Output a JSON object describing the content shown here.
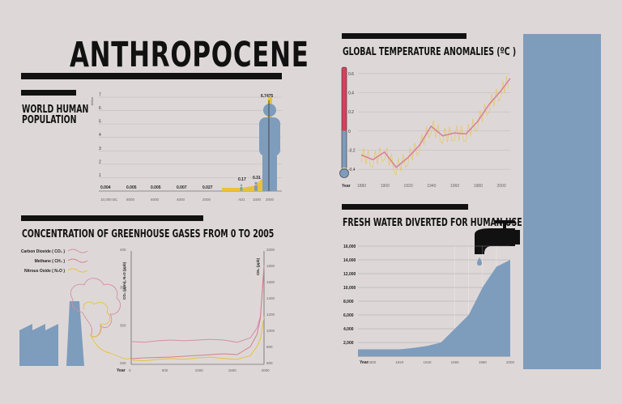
{
  "title": "ANTHROPOCENE",
  "population": {
    "title_line1": "WORLD HUMAN",
    "title_line2": "POPULATION",
    "unit": "billion",
    "yticks": [
      "1",
      "2",
      "3",
      "4",
      "5",
      "6",
      "7"
    ],
    "xlabels": [
      "10,000 BC",
      "8000",
      "6000",
      "4000",
      "2000",
      "AD1",
      "1000",
      "2000"
    ],
    "value_labels": [
      "0.004",
      "0.005",
      "0.005",
      "0.007",
      "0.027",
      "0.17",
      "0.31",
      "6.7475"
    ]
  },
  "temperature": {
    "title": "GLOBAL TEMPERATURE ANOMALIES (ºC )",
    "yticks": [
      "0.6",
      "0.4",
      "0.2",
      "0",
      "-0.2",
      "-0.4"
    ],
    "xlabels": [
      "1880",
      "1900",
      "1920",
      "1940",
      "1960",
      "1980",
      "2000"
    ],
    "year_label": "Year"
  },
  "ghg": {
    "title": "CONCENTRATION OF GREENHOUSE GASES FROM 0 TO 2005",
    "legend": [
      "Carbon Dioxide ( CO₂ )",
      "Methane ( CH₄ )",
      "Nitrous Oxide ( N₂O )"
    ],
    "left_axis_label": "CO₂ (ppm), N₂O (ppb)",
    "right_axis_label": "CH₄ (ppb)",
    "left_ticks": [
      "400",
      "350",
      "300",
      "250"
    ],
    "right_ticks": [
      "2000",
      "1800",
      "1600",
      "1400",
      "1200",
      "1000",
      "800",
      "600"
    ],
    "xlabels": [
      "0",
      "500",
      "1000",
      "1500",
      "2000"
    ],
    "year_label": "Year"
  },
  "water": {
    "title": "FRESH WATER DIVERTED FOR HUMAN USE",
    "yticks": [
      "16,000",
      "14,000",
      "12,000",
      "10,000",
      "8,000",
      "6,000",
      "4,000",
      "2,000"
    ],
    "xlabels": [
      "1900",
      "1920",
      "1940",
      "1960",
      "1980",
      "2000"
    ],
    "year_label": "Year"
  },
  "colors": {
    "background": "#ddd8d7",
    "blue": "#7e9cbc",
    "gold": "#e8c23a",
    "red": "#d8405e",
    "pink": "#d9809a",
    "co2": "#d68ea3",
    "ch4": "#d67f8d",
    "n2o": "#e8c23a",
    "black": "#111111"
  },
  "chart_data": [
    {
      "type": "area",
      "title": "WORLD HUMAN POPULATION",
      "ylabel": "billion",
      "ylim": [
        0,
        7
      ],
      "x": [
        "10,000 BC",
        "8000",
        "6000",
        "4000",
        "2000",
        "AD1",
        "1000",
        "2000"
      ],
      "values": [
        0.004,
        0.005,
        0.005,
        0.007,
        0.027,
        0.17,
        0.31,
        6.7475
      ]
    },
    {
      "type": "line",
      "title": "GLOBAL TEMPERATURE ANOMALIES (ºC )",
      "xlabel": "Year",
      "ylim": [
        -0.45,
        0.65
      ],
      "x": [
        1880,
        1890,
        1900,
        1910,
        1920,
        1930,
        1940,
        1950,
        1960,
        1970,
        1980,
        1990,
        2000,
        2008
      ],
      "series": [
        {
          "values": [
            -0.25,
            -0.3,
            -0.22,
            -0.38,
            -0.28,
            -0.15,
            0.05,
            -0.05,
            -0.02,
            -0.03,
            0.1,
            0.28,
            0.42,
            0.55
          ]
        }
      ]
    },
    {
      "type": "line",
      "title": "CONCENTRATION OF GREENHOUSE GASES FROM 0 TO 2005",
      "xlabel": "Year",
      "x": [
        0,
        200,
        400,
        600,
        800,
        1000,
        1200,
        1400,
        1600,
        1800,
        1900,
        1950,
        2005
      ],
      "series": [
        {
          "name": "Carbon Dioxide ( CO₂ )",
          "values": [
            278,
            277,
            279,
            280,
            279,
            280,
            281,
            280,
            277,
            283,
            296,
            311,
            379
          ]
        },
        {
          "name": "Methane ( CH₄ )",
          "values": [
            650,
            660,
            665,
            670,
            680,
            690,
            700,
            710,
            700,
            800,
            950,
            1150,
            1780
          ]
        },
        {
          "name": "Nitrous Oxide ( N₂O )",
          "values": [
            262,
            261,
            263,
            264,
            263,
            265,
            266,
            264,
            263,
            268,
            280,
            290,
            319
          ]
        }
      ]
    },
    {
      "type": "area",
      "title": "FRESH WATER DIVERTED FOR HUMAN USE",
      "xlabel": "Year",
      "ylim": [
        0,
        16000
      ],
      "x": [
        1890,
        1900,
        1910,
        1920,
        1930,
        1940,
        1950,
        1960,
        1970,
        1980,
        1990,
        2000
      ],
      "values": [
        1000,
        1000,
        1000,
        1000,
        1200,
        1500,
        2000,
        4000,
        6000,
        10000,
        13000,
        14000
      ]
    }
  ]
}
